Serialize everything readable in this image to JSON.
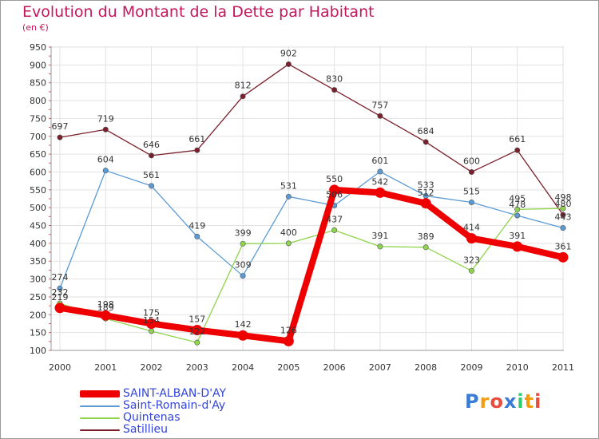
{
  "title": "Evolution du Montant de la Dette par Habitant",
  "subtitle": "(en €)",
  "logo": {
    "letters": [
      "P",
      "r",
      "o",
      "x",
      "i",
      "t",
      "i"
    ],
    "colors": [
      "#3a7bd5",
      "#f39c12",
      "#e74c3c",
      "#3a7bd5",
      "#2ecc71",
      "#f39c12",
      "#e74c3c"
    ]
  },
  "chart_data": {
    "type": "line",
    "x": [
      "2000",
      "2001",
      "2002",
      "2003",
      "2004",
      "2005",
      "2006",
      "2007",
      "2008",
      "2009",
      "2010",
      "2011"
    ],
    "ylim": [
      100,
      950
    ],
    "yticks": [
      100,
      150,
      200,
      250,
      300,
      350,
      400,
      450,
      500,
      550,
      600,
      650,
      700,
      750,
      800,
      850,
      900,
      950
    ],
    "grid": true,
    "legend_position": "bottom",
    "series": [
      {
        "name": "Satillieu",
        "color": "#7a1f2b",
        "values": [
          697,
          719,
          646,
          661,
          812,
          902,
          830,
          757,
          684,
          600,
          661,
          480
        ],
        "labels": [
          "697",
          "719",
          "646",
          "661",
          "812",
          "902",
          "830",
          "757",
          "684",
          "600",
          "661",
          "480"
        ]
      },
      {
        "name": "Saint-Romain-d'Ay",
        "color": "#5b9bd5",
        "values": [
          274,
          604,
          561,
          419,
          309,
          531,
          506,
          601,
          533,
          515,
          478,
          443
        ],
        "labels": [
          "274",
          "604",
          "561",
          "419",
          "309",
          "531",
          "506",
          "601",
          "533",
          "515",
          "478",
          "443"
        ]
      },
      {
        "name": "Quintenas",
        "color": "#8ed44c",
        "values": [
          232,
          189,
          154,
          122,
          399,
          400,
          437,
          391,
          389,
          323,
          495,
          498
        ],
        "labels": [
          "232",
          "189",
          "154",
          "122",
          "399",
          "400",
          "437",
          "391",
          "389",
          "323",
          "495",
          "498"
        ]
      },
      {
        "name": "SAINT-ALBAN-D'AY",
        "color": "#ee0000",
        "values": [
          219,
          198,
          175,
          157,
          142,
          126,
          550,
          542,
          512,
          414,
          391,
          361
        ],
        "labels": [
          "219",
          "198",
          "175",
          "157",
          "142",
          "126",
          "550",
          "542",
          "512",
          "414",
          "391",
          "361"
        ]
      }
    ],
    "legend_order": [
      "SAINT-ALBAN-D'AY",
      "Saint-Romain-d'Ay",
      "Quintenas",
      "Satillieu"
    ]
  }
}
